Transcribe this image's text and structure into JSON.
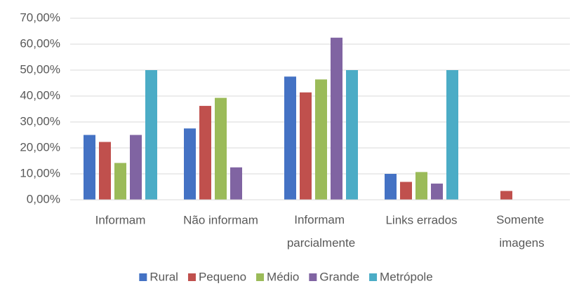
{
  "chart_data": {
    "type": "bar",
    "categories": [
      "Informam",
      "Não informam",
      "Informam parcialmente",
      "Links errados",
      "Somente imagens"
    ],
    "series": [
      {
        "name": "Rural",
        "color": "#4472c4",
        "values": [
          25,
          27.5,
          47.5,
          10,
          0
        ]
      },
      {
        "name": "Pequeno",
        "color": "#c0504d",
        "values": [
          22.3,
          36.2,
          41.4,
          6.9,
          3.4
        ]
      },
      {
        "name": "Médio",
        "color": "#9bbb59",
        "values": [
          14.2,
          39.3,
          46.4,
          10.7,
          0
        ]
      },
      {
        "name": "Grande",
        "color": "#8064a2",
        "values": [
          25,
          12.5,
          62.5,
          6.25,
          0
        ]
      },
      {
        "name": "Metrópole",
        "color": "#4bacc6",
        "values": [
          50,
          0,
          50,
          50,
          0
        ]
      }
    ],
    "ylim": [
      0,
      70
    ],
    "yticks": [
      {
        "value": 0,
        "label": "0,00%"
      },
      {
        "value": 10,
        "label": "10,00%"
      },
      {
        "value": 20,
        "label": "20,00%"
      },
      {
        "value": 30,
        "label": "30,00%"
      },
      {
        "value": 40,
        "label": "40,00%"
      },
      {
        "value": 50,
        "label": "50,00%"
      },
      {
        "value": 60,
        "label": "60,00%"
      },
      {
        "value": 70,
        "label": "70,00%"
      }
    ],
    "grid": true,
    "legend": "bottom"
  }
}
